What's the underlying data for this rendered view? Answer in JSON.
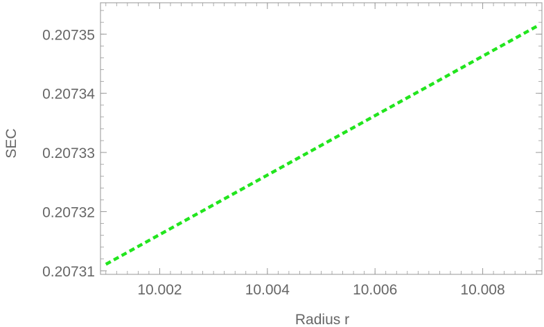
{
  "chart_data": {
    "type": "line",
    "title": "",
    "xlabel": "Radius r",
    "ylabel": "SEC",
    "xlim": [
      10.0009,
      10.0091
    ],
    "ylim": [
      0.2073094,
      0.2073553
    ],
    "x_ticks": [
      "10.002",
      "10.004",
      "10.006",
      "10.008"
    ],
    "y_ticks": [
      "0.20731",
      "0.20732",
      "0.20733",
      "0.20734",
      "0.20735"
    ],
    "series": [
      {
        "x": [
          10.001,
          10.009
        ],
        "y": [
          0.2073111,
          0.2073513
        ],
        "color": "#22e51e",
        "style": "dashed"
      }
    ],
    "grid": false,
    "frame": true,
    "colors": {
      "axis": "#999999",
      "text": "#666666",
      "line": "#22e51e"
    }
  }
}
